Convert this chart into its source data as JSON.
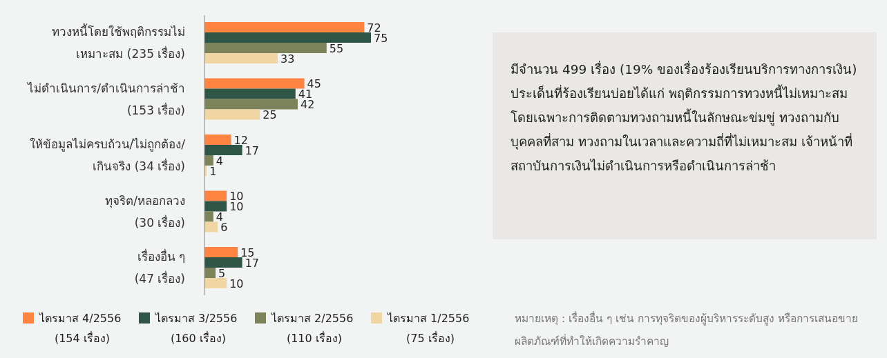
{
  "chart_data": {
    "type": "bar",
    "orientation": "horizontal",
    "data_labels": true,
    "legend": "bottom",
    "categories": [
      "ทวงหนี้โดยใช้พฤติกรรมไม่\nเหมาะสม (235 เรื่อง)",
      "ไม่ดำเนินการ/ดำเนินการล่าช้า\n(153 เรื่อง)",
      "ให้ข้อมูลไม่ครบถ้วน/ไม่ถูกต้อง/\nเกินจริง   (34 เรื่อง)",
      "ทุจริต/หลอกลวง\n(30 เรื่อง)",
      "เรื่องอื่น ๆ\n(47 เรื่อง)"
    ],
    "series": [
      {
        "name": "ไตรมาส 4/2556\n(154 เรื่อง)",
        "color": "#ff8442",
        "values": [
          72,
          45,
          12,
          10,
          15
        ]
      },
      {
        "name": "ไตรมาส 3/2556\n(160 เรื่อง)",
        "color": "#2f5546",
        "values": [
          75,
          41,
          17,
          10,
          17
        ]
      },
      {
        "name": "ไตรมาส 2/2556\n(110 เรื่อง)",
        "color": "#7c8259",
        "values": [
          55,
          42,
          4,
          4,
          5
        ]
      },
      {
        "name": "ไตรมาส 1/2556\n(75 เรื่อง)",
        "color": "#efd6a3",
        "values": [
          33,
          25,
          1,
          6,
          10
        ]
      }
    ],
    "annotations": [
      "มีจำนวน 499 เรื่อง (19% ของเรื่องร้องเรียนบริการทางการเงิน) ประเด็นที่ร้องเรียนบ่อยได้แก่ พฤติกรรมการทวงหนี้ไม่เหมาะสม โดยเฉพาะการติดตามทวงถามหนี้ในลักษณะข่มขู่ ทวงถามกับบุคคลที่สาม ทวงถามในเวลาและความถี่ที่ไม่เหมาะสม เจ้าหน้าที่สถาบันการเงินไม่ดำเนินการหรือดำเนินการล่าช้า",
      "หมายเหตุ : เรื่องอื่น ๆ เช่น การทุจริตของผู้บริหารระดับสูง หรือการเสนอขายผลิตภัณฑ์ที่ทำให้เกิดความรำคาญ"
    ]
  }
}
